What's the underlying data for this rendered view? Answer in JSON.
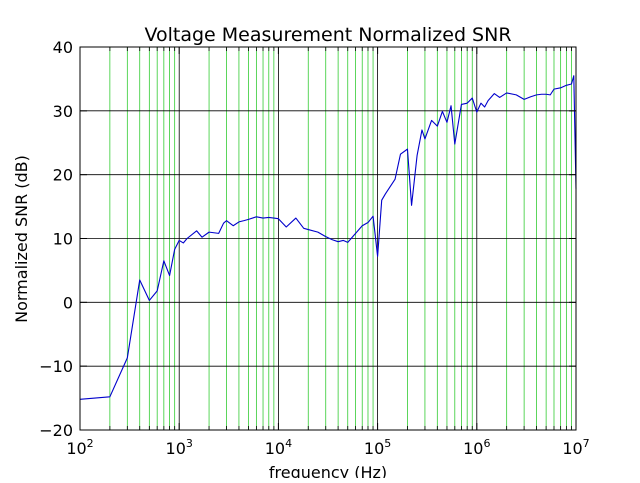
{
  "colors": {
    "background": "#ffffff",
    "axes_frame": "#000000",
    "major_grid": "#000000",
    "minor_grid": "#33cc33",
    "series_line": "#0000cc"
  },
  "chart_data": {
    "type": "line",
    "title": "Voltage Measurement Normalized SNR",
    "xlabel": "frequency (Hz)",
    "ylabel": "Normalized SNR (dB)",
    "x_scale": "log",
    "xlim": [
      100,
      10000000
    ],
    "ylim": [
      -20,
      40
    ],
    "x_ticks": [
      {
        "value": 100,
        "base": "10",
        "exp": "2"
      },
      {
        "value": 1000,
        "base": "10",
        "exp": "3"
      },
      {
        "value": 10000,
        "base": "10",
        "exp": "4"
      },
      {
        "value": 100000,
        "base": "10",
        "exp": "5"
      },
      {
        "value": 1000000,
        "base": "10",
        "exp": "6"
      },
      {
        "value": 10000000,
        "base": "10",
        "exp": "7"
      }
    ],
    "y_ticks": [
      {
        "value": -20,
        "label": "−20"
      },
      {
        "value": -10,
        "label": "−10"
      },
      {
        "value": 0,
        "label": "0"
      },
      {
        "value": 10,
        "label": "10"
      },
      {
        "value": 20,
        "label": "20"
      },
      {
        "value": 30,
        "label": "30"
      },
      {
        "value": 40,
        "label": "40"
      }
    ],
    "grid": {
      "major": true,
      "minor_x": true,
      "major_style": "black",
      "minor_style": "green"
    },
    "legend": "none",
    "series": [
      {
        "x": [
          100,
          200,
          300,
          400,
          500,
          600,
          700,
          800,
          900,
          1000,
          1100,
          1200,
          1500,
          1700,
          2000,
          2500,
          2800,
          3000,
          3500,
          4000,
          4500,
          5000,
          6000,
          7000,
          8000,
          9000,
          10000,
          12000,
          15000,
          18000,
          20000,
          25000,
          30000,
          35000,
          40000,
          45000,
          50000,
          60000,
          70000,
          80000,
          90000,
          100000,
          110000,
          120000,
          150000,
          170000,
          200000,
          220000,
          250000,
          280000,
          300000,
          350000,
          400000,
          450000,
          500000,
          550000,
          600000,
          700000,
          800000,
          900000,
          1000000,
          1100000,
          1200000,
          1300000,
          1500000,
          1700000,
          2000000,
          2500000,
          3000000,
          3500000,
          4000000,
          4500000,
          5000000,
          5500000,
          6000000,
          7000000,
          8000000,
          9000000,
          9500000,
          10000000
        ],
        "y": [
          -15.2,
          -14.8,
          -8.7,
          3.5,
          0.3,
          1.8,
          6.5,
          4.2,
          8.3,
          9.7,
          9.3,
          10.0,
          11.2,
          10.2,
          11.0,
          10.8,
          12.4,
          12.8,
          12.0,
          12.6,
          12.8,
          13.0,
          13.4,
          13.2,
          13.3,
          13.2,
          13.1,
          11.8,
          13.2,
          11.6,
          11.4,
          11.0,
          10.3,
          9.8,
          9.5,
          9.7,
          9.4,
          10.8,
          12.0,
          12.5,
          13.5,
          7.2,
          16.0,
          17.0,
          19.3,
          23.2,
          24.0,
          15.2,
          23.0,
          27.0,
          25.6,
          28.5,
          27.6,
          29.9,
          28.2,
          30.8,
          24.8,
          31.0,
          31.2,
          32.0,
          29.8,
          31.2,
          30.6,
          31.6,
          32.7,
          32.1,
          32.8,
          32.5,
          31.8,
          32.2,
          32.5,
          32.6,
          32.6,
          32.5,
          33.4,
          33.6,
          34.0,
          34.2,
          35.5,
          17.8
        ]
      }
    ]
  }
}
